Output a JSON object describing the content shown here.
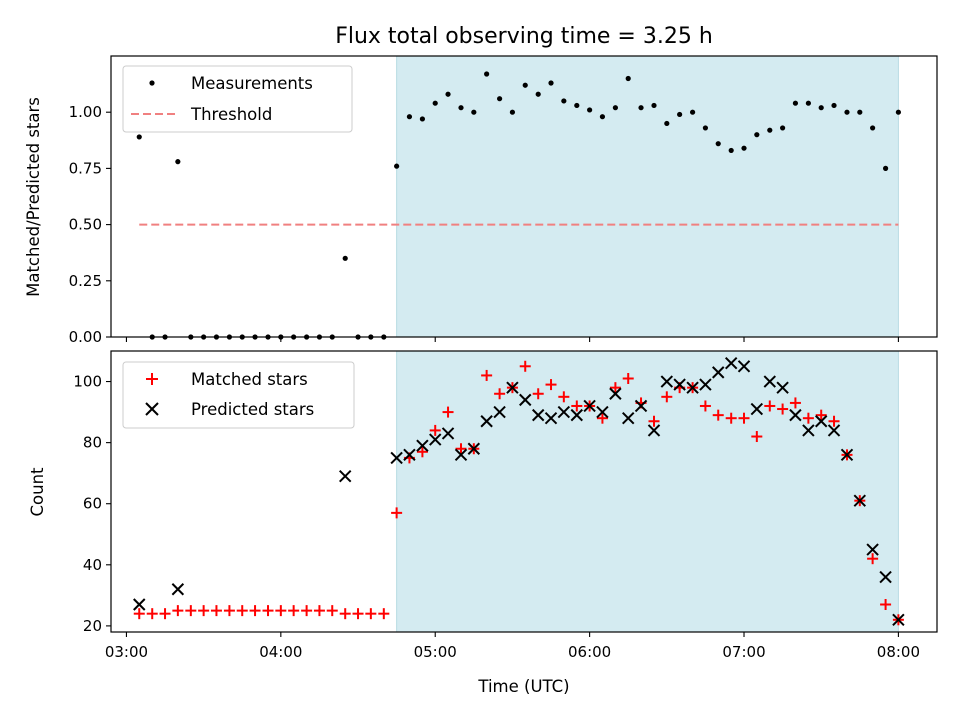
{
  "chart_data": [
    {
      "type": "scatter",
      "title": "Flux total observing time = 3.25 h",
      "ylabel": "Matched/Predicted stars",
      "xlabel": "",
      "xlim": [
        2.9,
        8.25
      ],
      "ylim": [
        0,
        1.25
      ],
      "yticks": [
        0.0,
        0.25,
        0.5,
        0.75,
        1.0
      ],
      "ytick_labels": [
        "0.00",
        "0.25",
        "0.50",
        "0.75",
        "1.00"
      ],
      "xticks": [
        3,
        4,
        5,
        6,
        7,
        8
      ],
      "shaded_region": {
        "x_start": 4.75,
        "x_end": 8.0,
        "color": "#d4ebf1"
      },
      "legend": {
        "placement": "upper-left",
        "entries": [
          "Measurements",
          "Threshold"
        ]
      },
      "series": [
        {
          "name": "Measurements",
          "marker": "dot",
          "color": "#000000",
          "x": [
            3.083,
            3.167,
            3.25,
            3.333,
            3.417,
            3.5,
            3.583,
            3.667,
            3.75,
            3.833,
            3.917,
            4.0,
            4.083,
            4.167,
            4.25,
            4.333,
            4.417,
            4.5,
            4.583,
            4.667,
            4.75,
            4.833,
            4.917,
            5.0,
            5.083,
            5.167,
            5.25,
            5.333,
            5.417,
            5.5,
            5.583,
            5.667,
            5.75,
            5.833,
            5.917,
            6.0,
            6.083,
            6.167,
            6.25,
            6.333,
            6.417,
            6.5,
            6.583,
            6.667,
            6.75,
            6.833,
            6.917,
            7.0,
            7.083,
            7.167,
            7.25,
            7.333,
            7.417,
            7.5,
            7.583,
            7.667,
            7.75,
            7.833,
            7.917,
            8.0
          ],
          "y": [
            0.89,
            0,
            0,
            0.78,
            0,
            0,
            0,
            0,
            0,
            0,
            0,
            0,
            0,
            0,
            0,
            0,
            0.35,
            0,
            0,
            0,
            0.76,
            0.98,
            0.97,
            1.04,
            1.08,
            1.02,
            1.0,
            1.17,
            1.06,
            1.0,
            1.12,
            1.08,
            1.13,
            1.05,
            1.03,
            1.01,
            0.98,
            1.02,
            1.15,
            1.02,
            1.03,
            0.95,
            0.99,
            1.0,
            0.93,
            0.86,
            0.83,
            0.84,
            0.9,
            0.92,
            0.93,
            1.04,
            1.04,
            1.02,
            1.03,
            1.0,
            1.0,
            0.93,
            0.75,
            1.0
          ]
        },
        {
          "name": "Threshold",
          "marker": "dashed-line",
          "color": "#f08080",
          "x": [
            3.083,
            8.0
          ],
          "y": [
            0.5,
            0.5
          ]
        }
      ]
    },
    {
      "type": "scatter",
      "title": "",
      "ylabel": "Count",
      "xlabel": "Time (UTC)",
      "xlim": [
        2.9,
        8.25
      ],
      "ylim": [
        18,
        110
      ],
      "yticks": [
        20,
        40,
        60,
        80,
        100
      ],
      "ytick_labels": [
        "20",
        "40",
        "60",
        "80",
        "100"
      ],
      "xticks": [
        3,
        4,
        5,
        6,
        7,
        8
      ],
      "xtick_labels": [
        "03:00",
        "04:00",
        "05:00",
        "06:00",
        "07:00",
        "08:00"
      ],
      "shaded_region": {
        "x_start": 4.75,
        "x_end": 8.0,
        "color": "#d4ebf1"
      },
      "legend": {
        "placement": "upper-left",
        "entries": [
          "Matched stars",
          "Predicted stars"
        ]
      },
      "series": [
        {
          "name": "Matched stars",
          "marker": "plus",
          "color": "#ff0000",
          "x": [
            3.083,
            3.167,
            3.25,
            3.333,
            3.417,
            3.5,
            3.583,
            3.667,
            3.75,
            3.833,
            3.917,
            4.0,
            4.083,
            4.167,
            4.25,
            4.333,
            4.417,
            4.5,
            4.583,
            4.667,
            4.75,
            4.833,
            4.917,
            5.0,
            5.083,
            5.167,
            5.25,
            5.333,
            5.417,
            5.5,
            5.583,
            5.667,
            5.75,
            5.833,
            5.917,
            6.0,
            6.083,
            6.167,
            6.25,
            6.333,
            6.417,
            6.5,
            6.583,
            6.667,
            6.75,
            6.833,
            6.917,
            7.0,
            7.083,
            7.167,
            7.25,
            7.333,
            7.417,
            7.5,
            7.583,
            7.667,
            7.75,
            7.833,
            7.917,
            8.0
          ],
          "y": [
            24,
            24,
            24,
            25,
            25,
            25,
            25,
            25,
            25,
            25,
            25,
            25,
            25,
            25,
            25,
            25,
            24,
            24,
            24,
            24,
            57,
            75,
            77,
            84,
            90,
            78,
            78,
            102,
            96,
            98,
            105,
            96,
            99,
            95,
            92,
            92,
            88,
            98,
            101,
            93,
            87,
            95,
            98,
            98,
            92,
            89,
            88,
            88,
            82,
            92,
            91,
            93,
            88,
            89,
            87,
            76,
            61,
            42,
            27,
            22
          ]
        },
        {
          "name": "Predicted stars",
          "marker": "x",
          "color": "#000000",
          "x": [
            3.083,
            3.333,
            4.417,
            4.75,
            4.833,
            4.917,
            5.0,
            5.083,
            5.167,
            5.25,
            5.333,
            5.417,
            5.5,
            5.583,
            5.667,
            5.75,
            5.833,
            5.917,
            6.0,
            6.083,
            6.167,
            6.25,
            6.333,
            6.417,
            6.5,
            6.583,
            6.667,
            6.75,
            6.833,
            6.917,
            7.0,
            7.083,
            7.167,
            7.25,
            7.333,
            7.417,
            7.5,
            7.583,
            7.667,
            7.75,
            7.833,
            7.917,
            8.0
          ],
          "y": [
            27,
            32,
            69,
            75,
            76,
            79,
            81,
            83,
            76,
            78,
            87,
            90,
            98,
            94,
            89,
            88,
            90,
            89,
            92,
            90,
            96,
            88,
            92,
            84,
            100,
            99,
            98,
            99,
            103,
            106,
            105,
            91,
            100,
            98,
            89,
            84,
            87,
            84,
            76,
            61,
            45,
            36,
            22
          ]
        }
      ]
    }
  ]
}
